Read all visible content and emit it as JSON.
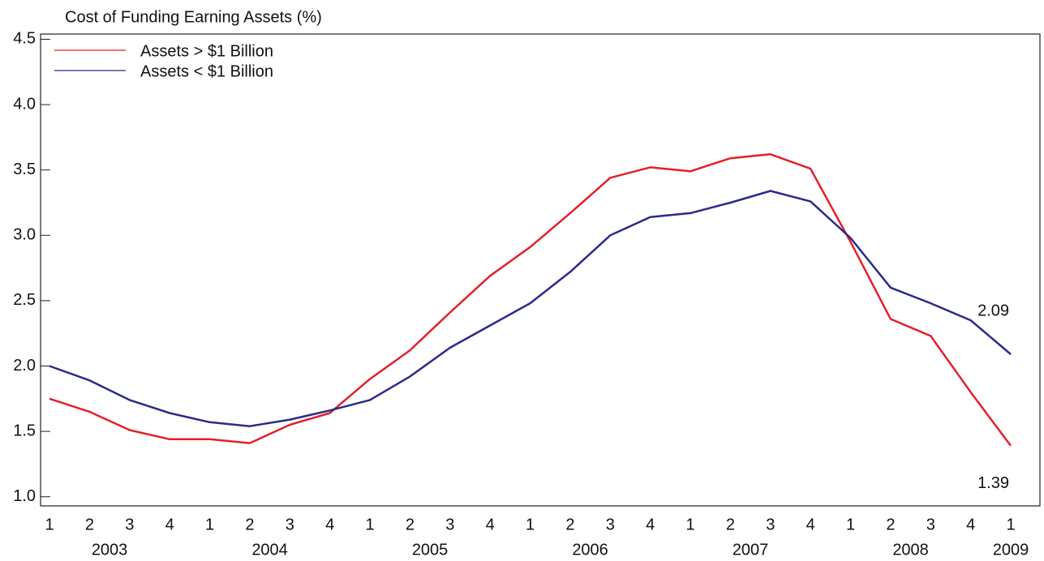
{
  "chart_data": {
    "type": "line",
    "title": "Cost of Funding Earning Assets (%)",
    "categories": [
      "1",
      "2",
      "3",
      "4",
      "1",
      "2",
      "3",
      "4",
      "1",
      "2",
      "3",
      "4",
      "1",
      "2",
      "3",
      "4",
      "1",
      "2",
      "3",
      "4",
      "1",
      "2",
      "3",
      "4",
      "1"
    ],
    "year_labels": [
      "2003",
      "2004",
      "2005",
      "2006",
      "2007",
      "2008",
      "2009"
    ],
    "series": [
      {
        "name": "Assets > $1 Billion",
        "color": "#e3202a",
        "values": [
          1.75,
          1.65,
          1.51,
          1.44,
          1.44,
          1.41,
          1.55,
          1.64,
          1.9,
          2.12,
          2.41,
          2.69,
          2.91,
          3.17,
          3.44,
          3.52,
          3.49,
          3.59,
          3.62,
          3.51,
          2.95,
          2.36,
          2.23,
          1.8,
          1.39
        ],
        "end_label": "1.39"
      },
      {
        "name": "Assets < $1 Billion",
        "color": "#2b2a8c",
        "values": [
          2.0,
          1.89,
          1.74,
          1.64,
          1.57,
          1.54,
          1.59,
          1.66,
          1.74,
          1.92,
          2.14,
          2.31,
          2.48,
          2.72,
          3.0,
          3.14,
          3.17,
          3.25,
          3.34,
          3.26,
          2.98,
          2.6,
          2.48,
          2.35,
          2.09
        ],
        "end_label": "2.09"
      }
    ],
    "ylim": [
      0.93,
      4.54
    ],
    "yticks": [
      {
        "value": 1,
        "label": "1.0"
      },
      1.5,
      {
        "value": 2,
        "label": "2.0"
      },
      2.5,
      {
        "value": 3,
        "label": "3.0"
      },
      3.5,
      {
        "value": 4,
        "label": "4.0"
      },
      4.5
    ],
    "legend": "upper left",
    "grid": false
  }
}
